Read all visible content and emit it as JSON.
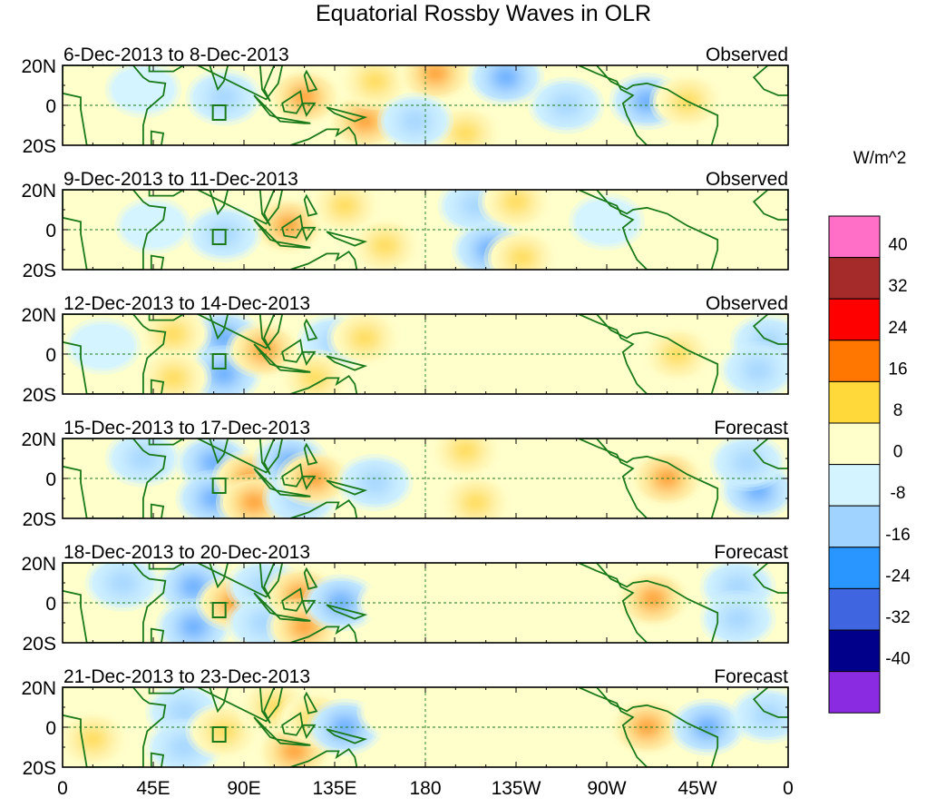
{
  "chart_data": {
    "type": "heatmap",
    "title": "Equatorial Rossby Waves in OLR",
    "units_label": "W/m^2",
    "x_ticks": [
      "0",
      "45E",
      "90E",
      "135E",
      "180",
      "135W",
      "90W",
      "45W",
      "0"
    ],
    "y_ticks": [
      "20N",
      "0",
      "20S"
    ],
    "lon_range": [
      0,
      360
    ],
    "lat_range": [
      -20,
      20
    ],
    "colorbar": {
      "levels": [
        "40",
        "32",
        "24",
        "16",
        "8",
        "0",
        "-8",
        "-16",
        "-24",
        "-32",
        "-40"
      ],
      "colors": [
        "#ff6ec7",
        "#a52a2a",
        "#ff0000",
        "#ff7700",
        "#ffd83a",
        "#ffffcc",
        "#d4f4ff",
        "#a0d3ff",
        "#2996ff",
        "#3f66e0",
        "#00008b",
        "#8a2be2"
      ]
    },
    "panels": [
      {
        "date_range": "6-Dec-2013 to 8-Dec-2013",
        "status": "Observed",
        "anomalies": [
          {
            "lon": 120,
            "lat": 4,
            "value": 20
          },
          {
            "lon": 150,
            "lat": -8,
            "value": 18
          },
          {
            "lon": 155,
            "lat": 12,
            "value": 14
          },
          {
            "lon": 185,
            "lat": 16,
            "value": 18
          },
          {
            "lon": 200,
            "lat": -14,
            "value": 16
          },
          {
            "lon": 220,
            "lat": 14,
            "value": -18
          },
          {
            "lon": 250,
            "lat": 0,
            "value": -12
          },
          {
            "lon": 290,
            "lat": 2,
            "value": -20
          },
          {
            "lon": 310,
            "lat": 2,
            "value": 16
          },
          {
            "lon": 80,
            "lat": 4,
            "value": -10
          },
          {
            "lon": 40,
            "lat": 8,
            "value": -8
          },
          {
            "lon": 175,
            "lat": -8,
            "value": -10
          }
        ]
      },
      {
        "date_range": "9-Dec-2013 to 11-Dec-2013",
        "status": "Observed",
        "anomalies": [
          {
            "lon": 112,
            "lat": 2,
            "value": 20
          },
          {
            "lon": 80,
            "lat": -2,
            "value": -16
          },
          {
            "lon": 140,
            "lat": 12,
            "value": 12
          },
          {
            "lon": 205,
            "lat": 12,
            "value": -14
          },
          {
            "lon": 225,
            "lat": 14,
            "value": 16
          },
          {
            "lon": 212,
            "lat": -10,
            "value": -18
          },
          {
            "lon": 228,
            "lat": -14,
            "value": 16
          },
          {
            "lon": 160,
            "lat": -8,
            "value": 10
          },
          {
            "lon": 45,
            "lat": 2,
            "value": -8
          },
          {
            "lon": 300,
            "lat": 2,
            "value": 8
          },
          {
            "lon": 270,
            "lat": 4,
            "value": -8
          }
        ]
      },
      {
        "date_range": "12-Dec-2013 to 14-Dec-2013",
        "status": "Observed",
        "anomalies": [
          {
            "lon": 80,
            "lat": 8,
            "value": -20
          },
          {
            "lon": 80,
            "lat": -10,
            "value": -20
          },
          {
            "lon": 100,
            "lat": 2,
            "value": 20
          },
          {
            "lon": 55,
            "lat": 10,
            "value": 12
          },
          {
            "lon": 55,
            "lat": -12,
            "value": 12
          },
          {
            "lon": 135,
            "lat": 6,
            "value": -12
          },
          {
            "lon": 125,
            "lat": -12,
            "value": 10
          },
          {
            "lon": 150,
            "lat": 8,
            "value": 10
          },
          {
            "lon": 305,
            "lat": 0,
            "value": 16
          },
          {
            "lon": 350,
            "lat": 6,
            "value": -12
          },
          {
            "lon": 345,
            "lat": -8,
            "value": -12
          },
          {
            "lon": 20,
            "lat": 4,
            "value": -8
          }
        ]
      },
      {
        "date_range": "15-Dec-2013 to 17-Dec-2013",
        "status": "Forecast",
        "anomalies": [
          {
            "lon": 75,
            "lat": 8,
            "value": -24
          },
          {
            "lon": 75,
            "lat": -10,
            "value": -24
          },
          {
            "lon": 93,
            "lat": 0,
            "value": 18
          },
          {
            "lon": 95,
            "lat": -12,
            "value": 18
          },
          {
            "lon": 113,
            "lat": 8,
            "value": -20
          },
          {
            "lon": 118,
            "lat": -10,
            "value": -12
          },
          {
            "lon": 125,
            "lat": 0,
            "value": 20
          },
          {
            "lon": 155,
            "lat": -2,
            "value": -12
          },
          {
            "lon": 200,
            "lat": 14,
            "value": 12
          },
          {
            "lon": 205,
            "lat": -12,
            "value": 10
          },
          {
            "lon": 300,
            "lat": 0,
            "value": 20
          },
          {
            "lon": 345,
            "lat": -6,
            "value": -20
          },
          {
            "lon": 340,
            "lat": 8,
            "value": -12
          },
          {
            "lon": 40,
            "lat": 10,
            "value": -12
          }
        ]
      },
      {
        "date_range": "18-Dec-2013 to 20-Dec-2013",
        "status": "Forecast",
        "anomalies": [
          {
            "lon": 65,
            "lat": 8,
            "value": -20
          },
          {
            "lon": 65,
            "lat": -12,
            "value": -20
          },
          {
            "lon": 85,
            "lat": 0,
            "value": 18
          },
          {
            "lon": 100,
            "lat": 8,
            "value": -16
          },
          {
            "lon": 100,
            "lat": -10,
            "value": -16
          },
          {
            "lon": 118,
            "lat": 4,
            "value": 18
          },
          {
            "lon": 120,
            "lat": -12,
            "value": 18
          },
          {
            "lon": 138,
            "lat": 0,
            "value": -20
          },
          {
            "lon": 165,
            "lat": 0,
            "value": 8
          },
          {
            "lon": 293,
            "lat": 2,
            "value": 20
          },
          {
            "lon": 335,
            "lat": 8,
            "value": -16
          },
          {
            "lon": 335,
            "lat": -8,
            "value": -16
          },
          {
            "lon": 30,
            "lat": 10,
            "value": -10
          }
        ]
      },
      {
        "date_range": "21-Dec-2013 to 23-Dec-2013",
        "status": "Forecast",
        "anomalies": [
          {
            "lon": 60,
            "lat": 8,
            "value": -16
          },
          {
            "lon": 60,
            "lat": -10,
            "value": -16
          },
          {
            "lon": 80,
            "lat": -2,
            "value": 10
          },
          {
            "lon": 105,
            "lat": 10,
            "value": 14
          },
          {
            "lon": 115,
            "lat": -12,
            "value": 18
          },
          {
            "lon": 125,
            "lat": 4,
            "value": 16
          },
          {
            "lon": 140,
            "lat": 0,
            "value": -20
          },
          {
            "lon": 165,
            "lat": 8,
            "value": 8
          },
          {
            "lon": 290,
            "lat": 0,
            "value": 20
          },
          {
            "lon": 320,
            "lat": 0,
            "value": -20
          },
          {
            "lon": 350,
            "lat": 6,
            "value": -12
          },
          {
            "lon": 15,
            "lat": -6,
            "value": 10
          }
        ]
      }
    ]
  }
}
